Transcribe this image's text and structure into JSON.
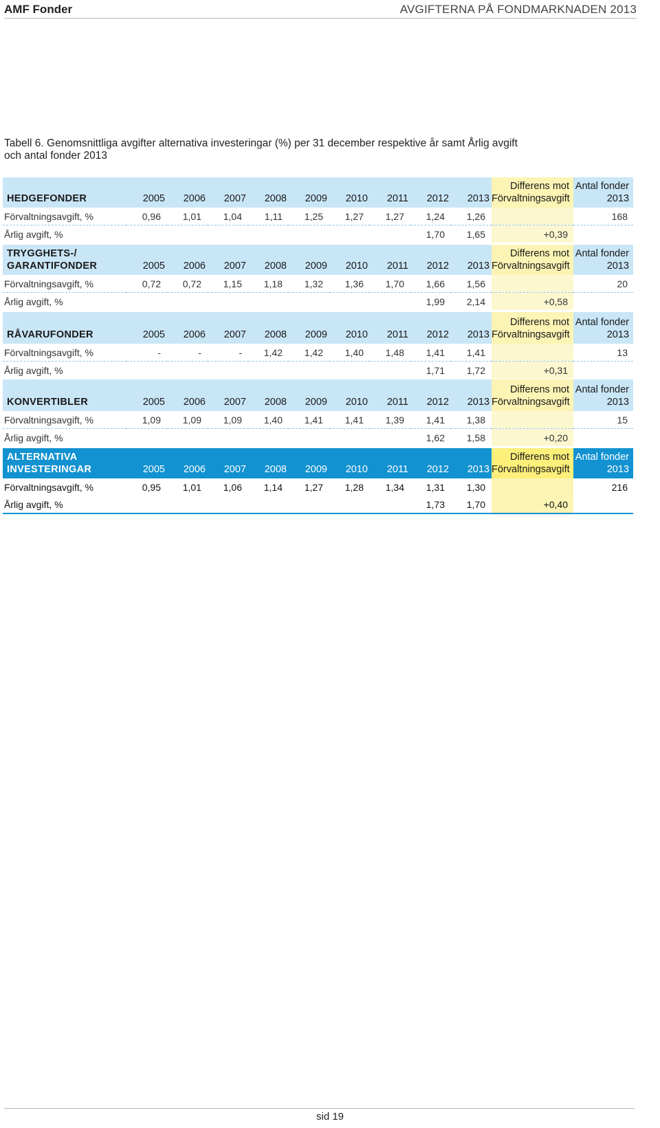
{
  "header": {
    "brand": "AMF Fonder",
    "section": "AVGIFTERNA PÅ FONDMARKNADEN 2013"
  },
  "caption": "Tabell 6. Genomsnittliga avgifter alternativa investeringar (%) per 31 december respektive år samt Årlig avgift och antal fonder 2013",
  "years": [
    "2005",
    "2006",
    "2007",
    "2008",
    "2009",
    "2010",
    "2011",
    "2012",
    "2013"
  ],
  "diff_header": "Differens mot Förvaltningsavgift",
  "count_header": "Antal fonder 2013",
  "groups": [
    {
      "title": "HEDGEFONDER",
      "fee_label": "Förvaltningsavgift, %",
      "fee": [
        "0,96",
        "1,01",
        "1,04",
        "1,11",
        "1,25",
        "1,27",
        "1,27",
        "1,24",
        "1,26"
      ],
      "count": "168",
      "annual_label": "Årlig avgift, %",
      "annual": [
        "",
        "",
        "",
        "",
        "",
        "",
        "",
        "1,70",
        "1,65"
      ],
      "diff": "+0,39"
    },
    {
      "title": "TRYGGHETS-/ GARANTIFONDER",
      "fee_label": "Förvaltningsavgift, %",
      "fee": [
        "0,72",
        "0,72",
        "1,15",
        "1,18",
        "1,32",
        "1,36",
        "1,70",
        "1,66",
        "1,56"
      ],
      "count": "20",
      "annual_label": "Årlig avgift, %",
      "annual": [
        "",
        "",
        "",
        "",
        "",
        "",
        "",
        "1,99",
        "2,14"
      ],
      "diff": "+0,58"
    },
    {
      "title": "RÅVARUFONDER",
      "fee_label": "Förvaltningsavgift, %",
      "fee": [
        "-",
        "-",
        "-",
        "1,42",
        "1,42",
        "1,40",
        "1,48",
        "1,41",
        "1,41"
      ],
      "count": "13",
      "annual_label": "Årlig avgift, %",
      "annual": [
        "",
        "",
        "",
        "",
        "",
        "",
        "",
        "1,71",
        "1,72"
      ],
      "diff": "+0,31"
    },
    {
      "title": "KONVERTIBLER",
      "fee_label": "Förvaltningsavgift, %",
      "fee": [
        "1,09",
        "1,09",
        "1,09",
        "1,40",
        "1,41",
        "1,41",
        "1,39",
        "1,41",
        "1,38"
      ],
      "count": "15",
      "annual_label": "Årlig avgift, %",
      "annual": [
        "",
        "",
        "",
        "",
        "",
        "",
        "",
        "1,62",
        "1,58"
      ],
      "diff": "+0,20"
    }
  ],
  "total": {
    "title": "ALTERNATIVA INVESTERINGAR",
    "fee_label": "Förvaltningsavgift, %",
    "fee": [
      "0,95",
      "1,01",
      "1,06",
      "1,14",
      "1,27",
      "1,28",
      "1,34",
      "1,31",
      "1,30"
    ],
    "count": "216",
    "annual_label": "Årlig avgift, %",
    "annual": [
      "",
      "",
      "",
      "",
      "",
      "",
      "",
      "1,73",
      "1,70"
    ],
    "diff": "+0,40"
  },
  "page": "sid 19"
}
